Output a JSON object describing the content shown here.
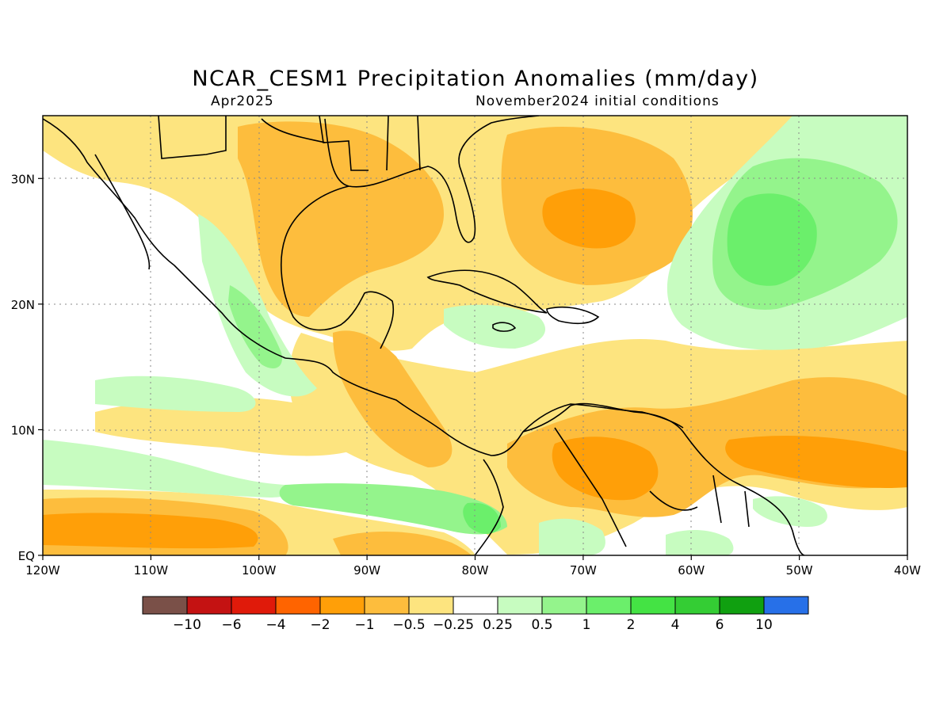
{
  "title": "NCAR_CESM1 Precipitation Anomalies (mm/day)",
  "subtitle_left": "Apr2025",
  "subtitle_right": "November2024 initial conditions",
  "map": {
    "lon_range": [
      -120,
      -40
    ],
    "lat_range": [
      0,
      35
    ],
    "lon_ticks": [
      {
        "value": -120,
        "label": "120W"
      },
      {
        "value": -110,
        "label": "110W"
      },
      {
        "value": -100,
        "label": "100W"
      },
      {
        "value": -90,
        "label": "90W"
      },
      {
        "value": -80,
        "label": "80W"
      },
      {
        "value": -70,
        "label": "70W"
      },
      {
        "value": -60,
        "label": "60W"
      },
      {
        "value": -50,
        "label": "50W"
      },
      {
        "value": -40,
        "label": "40W"
      }
    ],
    "lat_ticks": [
      {
        "value": 0,
        "label": "EQ"
      },
      {
        "value": 10,
        "label": "10N"
      },
      {
        "value": 20,
        "label": "20N"
      },
      {
        "value": 30,
        "label": "30N"
      }
    ],
    "grid": "dotted"
  },
  "colorbar": {
    "colors": [
      "#7a5048",
      "#c41212",
      "#e01a0a",
      "#ff6400",
      "#ff9f08",
      "#fdbd3d",
      "#fde47f",
      "#ffffff",
      "#c7fcc0",
      "#94f48c",
      "#6bef6b",
      "#44e344",
      "#34cd34",
      "#10a010",
      "#2770e8"
    ],
    "labels": [
      "−10",
      "−6",
      "−4",
      "−2",
      "−1",
      "−0.5",
      "−0.25",
      "0.25",
      "0.5",
      "1",
      "2",
      "4",
      "6",
      "10"
    ]
  },
  "anomaly_colors": {
    "dry_moderate": "#fde47f",
    "dry_strong": "#fdbd3d",
    "dry_very": "#ff9f08",
    "wet_light": "#c7fcc0",
    "wet_moderate": "#94f48c",
    "wet_strong": "#6bef6b",
    "wet_very": "#44e344"
  }
}
